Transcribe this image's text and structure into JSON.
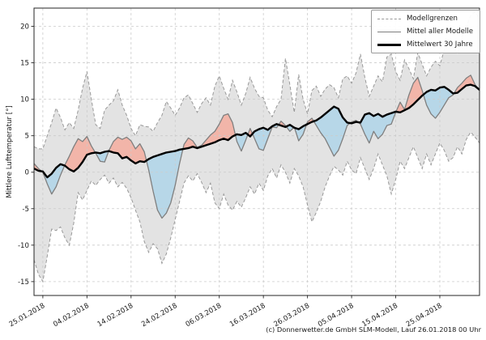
{
  "caption": "(c) Donnerwetter.de GmbH SLM-Modell, Lauf 26.01.2018 00 Uhr",
  "legend": {
    "items": [
      {
        "label": "Modellgrenzen"
      },
      {
        "label": "Mittel aller Modelle"
      },
      {
        "label": "Mittelwert 30 Jahre"
      }
    ]
  },
  "chart_data": {
    "type": "line",
    "title": "",
    "xlabel": "",
    "ylabel": "Mittlere Lufttemperatur [°]",
    "ylim": [
      -16.9,
      22.5
    ],
    "y_ticks": [
      -15,
      -10,
      -5,
      0,
      5,
      10,
      15,
      20
    ],
    "grid": "dashed",
    "legend_position": "top-right",
    "x_tick_indices": [
      2,
      12,
      22,
      32,
      42,
      52,
      62,
      72,
      82,
      92
    ],
    "x_tick_labels": [
      "25.01.2018",
      "04.02.2018",
      "14.02.2018",
      "24.02.2018",
      "06.03.2018",
      "16.03.2018",
      "26.03.2018",
      "05.04.2018",
      "15.04.2018",
      "25.04.2018"
    ],
    "series": [
      {
        "name": "Modellgrenzen obere Grenze",
        "role": "upper_bound",
        "values": [
          3.5,
          3.2,
          3.2,
          5.0,
          6.8,
          8.8,
          7.5,
          5.8,
          6.8,
          6.0,
          8.5,
          11.5,
          13.8,
          10.0,
          6.5,
          6.0,
          8.5,
          9.2,
          9.8,
          11.3,
          9.2,
          7.8,
          6.0,
          5.0,
          6.5,
          6.3,
          6.2,
          5.6,
          6.8,
          7.8,
          9.7,
          8.8,
          7.8,
          8.8,
          10.2,
          10.6,
          9.4,
          8.2,
          9.4,
          10.2,
          9.2,
          11.8,
          13.2,
          11.5,
          10.0,
          12.6,
          11.0,
          9.2,
          10.8,
          13.0,
          11.5,
          10.4,
          10.2,
          8.5,
          7.6,
          9.0,
          10.0,
          15.6,
          12.0,
          8.2,
          13.4,
          10.0,
          8.0,
          11.2,
          11.8,
          10.4,
          11.4,
          12.0,
          11.6,
          10.2,
          12.8,
          13.2,
          12.2,
          13.6,
          16.2,
          13.0,
          10.4,
          11.8,
          13.2,
          12.4,
          15.8,
          16.2,
          13.8,
          12.6,
          15.4,
          14.2,
          12.8,
          16.4,
          14.8,
          13.2,
          14.4,
          15.2,
          14.6,
          16.8,
          18.2,
          17.0,
          16.2,
          18.6,
          20.0,
          21.5,
          22.0,
          21.0
        ]
      },
      {
        "name": "Modellgrenzen untere Grenze",
        "role": "lower_bound",
        "values": [
          -12.0,
          -14.0,
          -15.0,
          -11.5,
          -7.8,
          -8.0,
          -7.5,
          -9.0,
          -10.0,
          -7.0,
          -2.8,
          -3.8,
          -2.5,
          -1.2,
          -1.8,
          -1.0,
          -0.4,
          -1.5,
          -0.8,
          -2.0,
          -1.4,
          -2.2,
          -3.5,
          -5.2,
          -6.8,
          -9.5,
          -11.0,
          -9.8,
          -10.5,
          -12.5,
          -11.2,
          -9.0,
          -6.5,
          -4.0,
          -1.5,
          -0.5,
          -1.2,
          -0.2,
          -1.4,
          -2.8,
          -1.5,
          -4.2,
          -5.0,
          -3.0,
          -4.5,
          -5.2,
          -4.0,
          -4.8,
          -3.5,
          -2.0,
          -3.0,
          -1.5,
          -2.5,
          -0.5,
          0.5,
          -0.8,
          1.0,
          0.0,
          -1.5,
          0.5,
          -0.5,
          -2.0,
          -4.5,
          -6.8,
          -5.5,
          -4.0,
          -2.0,
          -0.5,
          0.8,
          0.3,
          -0.4,
          1.5,
          0.3,
          -0.2,
          2.0,
          0.5,
          -1.0,
          0.5,
          2.5,
          1.0,
          -0.5,
          -3.0,
          -1.0,
          1.5,
          0.5,
          2.0,
          3.5,
          2.0,
          0.5,
          2.5,
          1.0,
          2.5,
          4.0,
          3.0,
          1.5,
          2.0,
          3.5,
          2.5,
          4.5,
          5.5,
          4.8,
          4.0
        ]
      },
      {
        "name": "Mittel aller Modelle",
        "role": "model_mean",
        "values": [
          1.2,
          0.5,
          0.0,
          -1.6,
          -3.0,
          -2.0,
          -0.4,
          1.0,
          2.2,
          3.5,
          4.6,
          4.2,
          4.9,
          3.6,
          2.6,
          1.5,
          1.4,
          3.0,
          4.2,
          4.8,
          4.5,
          4.8,
          4.3,
          3.2,
          3.9,
          2.8,
          0.3,
          -2.6,
          -5.2,
          -6.3,
          -5.6,
          -4.2,
          -1.8,
          1.2,
          3.8,
          4.7,
          4.3,
          3.4,
          3.7,
          4.4,
          5.1,
          5.6,
          6.6,
          7.8,
          8.0,
          6.8,
          4.2,
          2.9,
          4.4,
          6.0,
          4.6,
          3.2,
          3.0,
          4.6,
          6.2,
          6.1,
          7.0,
          6.4,
          5.6,
          6.2,
          4.3,
          5.2,
          6.9,
          7.4,
          6.4,
          5.4,
          4.6,
          3.4,
          2.2,
          3.0,
          4.6,
          6.4,
          6.9,
          7.1,
          6.6,
          5.2,
          4.0,
          5.6,
          4.6,
          5.2,
          6.4,
          6.6,
          8.2,
          9.6,
          8.6,
          10.6,
          12.2,
          13.0,
          11.2,
          9.2,
          8.0,
          7.4,
          8.2,
          9.2,
          10.2,
          10.6,
          11.6,
          12.2,
          12.9,
          13.3,
          12.0,
          11.2
        ]
      },
      {
        "name": "Mittelwert 30 Jahre",
        "role": "climate_mean",
        "values": [
          0.5,
          0.2,
          0.1,
          -0.7,
          -0.2,
          0.6,
          1.1,
          0.9,
          0.4,
          0.1,
          0.6,
          1.4,
          2.4,
          2.6,
          2.7,
          2.6,
          2.8,
          2.9,
          2.7,
          2.6,
          1.9,
          2.1,
          1.6,
          1.2,
          1.5,
          1.4,
          1.8,
          2.1,
          2.3,
          2.5,
          2.7,
          2.8,
          2.9,
          3.1,
          3.2,
          3.3,
          3.5,
          3.3,
          3.5,
          3.7,
          3.9,
          4.1,
          4.4,
          4.6,
          4.4,
          4.9,
          5.2,
          5.1,
          5.4,
          4.9,
          5.6,
          5.9,
          6.1,
          5.8,
          6.3,
          6.6,
          6.4,
          6.2,
          6.5,
          6.1,
          5.9,
          6.3,
          6.6,
          6.9,
          7.1,
          7.5,
          8.0,
          8.5,
          9.0,
          8.7,
          7.5,
          6.8,
          6.7,
          6.9,
          6.8,
          7.9,
          8.1,
          7.7,
          8.0,
          7.6,
          7.9,
          8.1,
          8.3,
          8.2,
          8.5,
          8.8,
          9.3,
          9.9,
          10.5,
          11.0,
          11.3,
          11.2,
          11.6,
          11.7,
          11.3,
          10.8,
          10.9,
          11.4,
          11.9,
          12.0,
          11.8,
          11.3
        ]
      }
    ],
    "colors": {
      "band_fill": "#e3e3e3",
      "band_edge": "#999999",
      "above_fill": "#f2b5a9",
      "below_fill": "#b7d7e8",
      "model_mean_line": "#7f7f7f",
      "climate_mean_line": "#000000",
      "grid": "#cbcbcb",
      "spine": "#262626",
      "text": "#1a1a1a"
    }
  }
}
